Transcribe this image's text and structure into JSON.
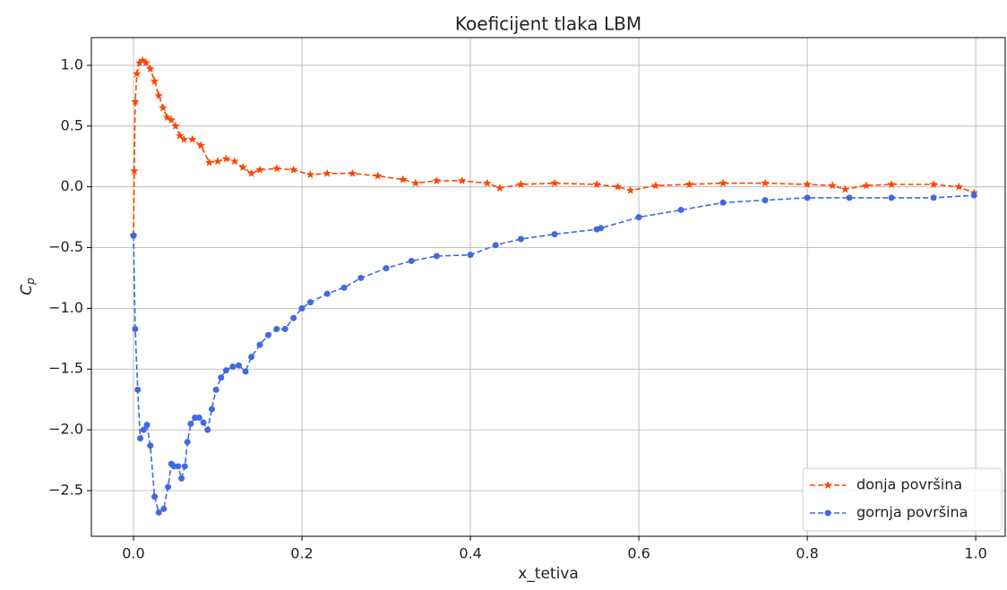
{
  "chart_data": {
    "type": "line",
    "title": "Koeficijent tlaka LBM",
    "xlabel": "x_tetiva",
    "ylabel": {
      "base": "C",
      "sub": "p"
    },
    "xlim": [
      -0.05,
      1.035
    ],
    "ylim": [
      -2.876,
      1.228
    ],
    "xticks": [
      {
        "value": 0,
        "label": "0.0"
      },
      0.2,
      0.4,
      0.6,
      0.8,
      {
        "value": 1,
        "label": "1.0"
      }
    ],
    "yticks": [
      {
        "value": 1,
        "label": "1.0"
      },
      0.5,
      {
        "value": 0,
        "label": "0.0"
      },
      {
        "value": -0.5,
        "label": "−0.5"
      },
      {
        "value": -1,
        "label": "−1.0"
      },
      {
        "value": -1.5,
        "label": "−1.5"
      },
      {
        "value": -2,
        "label": "−2.0"
      },
      {
        "value": -2.5,
        "label": "−2.5"
      }
    ],
    "grid": true,
    "legend": "lower right",
    "series": [
      {
        "name": "donja površina",
        "color": "#ff4500",
        "marker": "star",
        "x": [
          0,
          0.001,
          0.002,
          0.004,
          0.007,
          0.011,
          0.015,
          0.02,
          0.025,
          0.03,
          0.035,
          0.04,
          0.045,
          0.05,
          0.055,
          0.06,
          0.07,
          0.08,
          0.09,
          0.1,
          0.11,
          0.12,
          0.13,
          0.14,
          0.15,
          0.17,
          0.19,
          0.21,
          0.23,
          0.26,
          0.29,
          0.32,
          0.335,
          0.36,
          0.39,
          0.42,
          0.435,
          0.46,
          0.5,
          0.55,
          0.575,
          0.59,
          0.62,
          0.66,
          0.7,
          0.75,
          0.8,
          0.83,
          0.845,
          0.87,
          0.9,
          0.95,
          0.98,
          0.998
        ],
        "values": [
          -0.4,
          0.13,
          0.7,
          0.93,
          1.02,
          1.04,
          1.02,
          0.97,
          0.87,
          0.75,
          0.65,
          0.57,
          0.55,
          0.5,
          0.42,
          0.39,
          0.39,
          0.34,
          0.2,
          0.21,
          0.23,
          0.21,
          0.16,
          0.11,
          0.14,
          0.15,
          0.14,
          0.1,
          0.11,
          0.11,
          0.09,
          0.06,
          0.03,
          0.05,
          0.05,
          0.03,
          -0.01,
          0.02,
          0.03,
          0.02,
          0,
          -0.03,
          0.01,
          0.02,
          0.03,
          0.03,
          0.02,
          0.01,
          -0.02,
          0.01,
          0.02,
          0.02,
          0,
          -0.05
        ]
      },
      {
        "name": "gornja površina",
        "color": "#4169e1",
        "marker": "circle",
        "x": [
          0,
          0.002,
          0.005,
          0.008,
          0.012,
          0.016,
          0.02,
          0.025,
          0.03,
          0.036,
          0.041,
          0.045,
          0.048,
          0.053,
          0.057,
          0.061,
          0.064,
          0.068,
          0.073,
          0.078,
          0.083,
          0.088,
          0.093,
          0.098,
          0.104,
          0.11,
          0.118,
          0.125,
          0.133,
          0.14,
          0.15,
          0.16,
          0.17,
          0.18,
          0.19,
          0.2,
          0.21,
          0.23,
          0.25,
          0.27,
          0.3,
          0.33,
          0.36,
          0.4,
          0.43,
          0.46,
          0.5,
          0.55,
          0.555,
          0.6,
          0.65,
          0.7,
          0.75,
          0.8,
          0.85,
          0.9,
          0.95,
          0.998
        ],
        "values": [
          -0.4,
          -1.17,
          -1.67,
          -2.07,
          -2,
          -1.96,
          -2.13,
          -2.55,
          -2.68,
          -2.65,
          -2.47,
          -2.28,
          -2.3,
          -2.3,
          -2.4,
          -2.3,
          -2.1,
          -1.95,
          -1.9,
          -1.9,
          -1.94,
          -2,
          -1.83,
          -1.67,
          -1.57,
          -1.51,
          -1.48,
          -1.47,
          -1.52,
          -1.4,
          -1.3,
          -1.22,
          -1.17,
          -1.17,
          -1.08,
          -1,
          -0.95,
          -0.88,
          -0.83,
          -0.75,
          -0.67,
          -0.61,
          -0.57,
          -0.56,
          -0.48,
          -0.43,
          -0.39,
          -0.35,
          -0.34,
          -0.25,
          -0.19,
          -0.13,
          -0.11,
          -0.09,
          -0.09,
          -0.09,
          -0.09,
          -0.07
        ]
      }
    ]
  }
}
